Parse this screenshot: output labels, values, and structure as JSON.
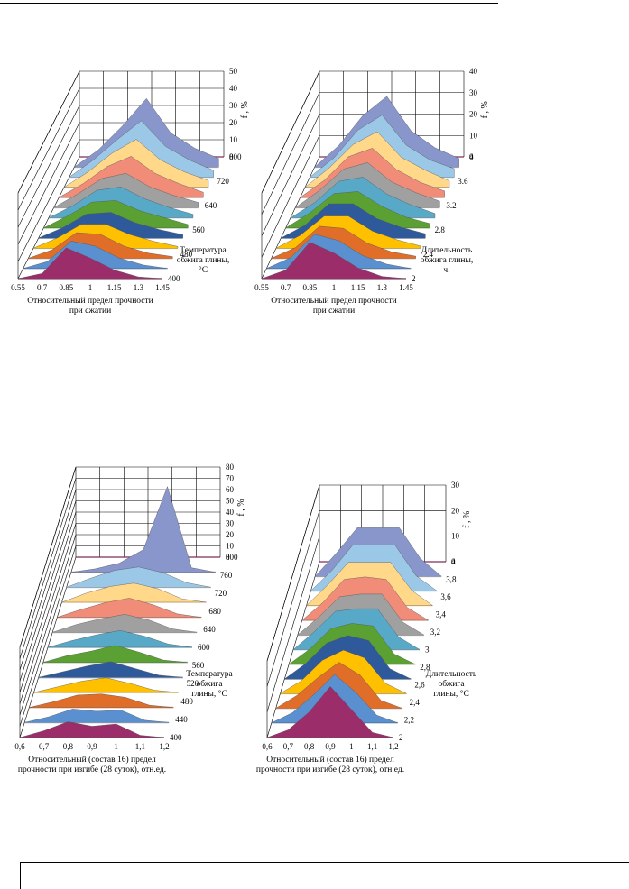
{
  "colors": [
    "#9b2d6b",
    "#5a8fd0",
    "#e06d28",
    "#ffc000",
    "#2e5a9c",
    "#5aa032",
    "#58a8c8",
    "#a0a0a0",
    "#f08c78",
    "#ffd88a",
    "#9cc8e8",
    "#8896cc"
  ],
  "chart_data": [
    {
      "type": "area",
      "title": "",
      "xlabel": "Относительный предел прочности\nпри сжатии",
      "zlabel": "Температура\nобжига глины,\n°C",
      "ylabel": "f , %",
      "x_ticks": [
        "0.55",
        "0.7",
        "0.85",
        "1",
        "1.15",
        "1.3",
        "1.45"
      ],
      "z_ticks": [
        "400",
        "480",
        "560",
        "640",
        "720",
        "800"
      ],
      "y_ticks": [
        "0",
        "10",
        "20",
        "30",
        "40",
        "50"
      ],
      "ylim": [
        0,
        50
      ],
      "series": [
        {
          "values": [
            0,
            3,
            18,
            12,
            5,
            1,
            0
          ]
        },
        {
          "values": [
            0,
            4,
            16,
            13,
            6,
            2,
            0
          ]
        },
        {
          "values": [
            0,
            5,
            15,
            14,
            7,
            3,
            1
          ]
        },
        {
          "values": [
            0,
            6,
            14,
            14,
            8,
            4,
            1
          ]
        },
        {
          "values": [
            0,
            6,
            14,
            15,
            9,
            5,
            2
          ]
        },
        {
          "values": [
            0,
            7,
            15,
            16,
            10,
            6,
            2
          ]
        },
        {
          "values": [
            0,
            7,
            16,
            18,
            11,
            6,
            2
          ]
        },
        {
          "values": [
            0,
            8,
            17,
            20,
            12,
            7,
            3
          ]
        },
        {
          "values": [
            0,
            8,
            18,
            24,
            14,
            8,
            3
          ]
        },
        {
          "values": [
            0,
            9,
            20,
            28,
            16,
            9,
            4
          ]
        },
        {
          "values": [
            0,
            10,
            22,
            33,
            18,
            10,
            4
          ]
        },
        {
          "values": [
            0,
            10,
            24,
            40,
            20,
            11,
            5
          ]
        }
      ]
    },
    {
      "type": "area",
      "title": "",
      "xlabel": "Относительный предел прочности\nпри сжатии",
      "zlabel": "Длительность\nобжига глины,\nч.",
      "ylabel": "f , %",
      "x_ticks": [
        "0.55",
        "0.7",
        "0.85",
        "1",
        "1.15",
        "1.3",
        "1.45"
      ],
      "z_ticks": [
        "2",
        "2.4",
        "2.8",
        "3.2",
        "3.6",
        "4"
      ],
      "y_ticks": [
        "0",
        "10",
        "20",
        "30",
        "40"
      ],
      "ylim": [
        0,
        40
      ],
      "series": [
        {
          "values": [
            0,
            4,
            17,
            12,
            5,
            1,
            0
          ]
        },
        {
          "values": [
            0,
            5,
            16,
            13,
            6,
            2,
            0
          ]
        },
        {
          "values": [
            0,
            5,
            15,
            14,
            7,
            3,
            1
          ]
        },
        {
          "values": [
            0,
            6,
            15,
            15,
            8,
            4,
            1
          ]
        },
        {
          "values": [
            0,
            6,
            16,
            16,
            9,
            5,
            2
          ]
        },
        {
          "values": [
            0,
            7,
            16,
            17,
            10,
            5,
            2
          ]
        },
        {
          "values": [
            0,
            7,
            17,
            19,
            11,
            6,
            2
          ]
        },
        {
          "values": [
            0,
            8,
            18,
            21,
            12,
            7,
            3
          ]
        },
        {
          "values": [
            0,
            8,
            19,
            23,
            13,
            7,
            3
          ]
        },
        {
          "values": [
            0,
            9,
            20,
            26,
            14,
            8,
            3
          ]
        },
        {
          "values": [
            0,
            9,
            22,
            29,
            15,
            8,
            4
          ]
        },
        {
          "values": [
            0,
            10,
            24,
            33,
            17,
            9,
            4
          ]
        }
      ]
    },
    {
      "type": "area",
      "title": "",
      "xlabel": "Относительный (состав 16) предел\nпрочности при изгибе (28 суток), отн.ед.",
      "zlabel": "Температура\nобжига\nглины, °C",
      "ylabel": "f , %",
      "x_ticks": [
        "0,6",
        "0,7",
        "0,8",
        "0,9",
        "1",
        "1,1",
        "1,2"
      ],
      "z_ticks": [
        "400",
        "440",
        "480",
        "520",
        "560",
        "600",
        "640",
        "680",
        "720",
        "760",
        "800"
      ],
      "y_ticks": [
        "0",
        "10",
        "20",
        "30",
        "40",
        "50",
        "60",
        "70",
        "80"
      ],
      "ylim": [
        0,
        80
      ],
      "series": [
        {
          "values": [
            0,
            6,
            14,
            10,
            12,
            2,
            0
          ]
        },
        {
          "values": [
            0,
            5,
            12,
            10,
            11,
            2,
            0
          ]
        },
        {
          "values": [
            0,
            5,
            11,
            12,
            9,
            2,
            0
          ]
        },
        {
          "values": [
            0,
            5,
            10,
            13,
            8,
            2,
            0
          ]
        },
        {
          "values": [
            0,
            5,
            10,
            14,
            8,
            2,
            0
          ]
        },
        {
          "values": [
            0,
            6,
            10,
            15,
            9,
            2,
            0
          ]
        },
        {
          "values": [
            0,
            6,
            11,
            15,
            10,
            3,
            0
          ]
        },
        {
          "values": [
            0,
            7,
            12,
            16,
            11,
            3,
            0
          ]
        },
        {
          "values": [
            0,
            7,
            13,
            17,
            11,
            3,
            0
          ]
        },
        {
          "values": [
            0,
            8,
            14,
            17,
            12,
            3,
            0
          ]
        },
        {
          "values": [
            0,
            8,
            15,
            18,
            13,
            4,
            0
          ]
        },
        {
          "values": [
            0,
            3,
            8,
            20,
            76,
            4,
            0
          ]
        }
      ]
    },
    {
      "type": "area",
      "title": "",
      "xlabel": "Относительный (состав 16) предел\nпрочности при изгибе (28 суток), отн.ед.",
      "zlabel": "Длительность\nобжига\nглины, °C",
      "ylabel": "f , %",
      "x_ticks": [
        "0,6",
        "0,7",
        "0,8",
        "0,9",
        "1",
        "1,1",
        "1,2"
      ],
      "z_ticks": [
        "2",
        "2,2",
        "2,4",
        "2,6",
        "2,8",
        "3",
        "3,2",
        "3,4",
        "3,6",
        "3,8",
        "4"
      ],
      "y_ticks": [
        "0",
        "10",
        "20",
        "30"
      ],
      "ylim": [
        0,
        30
      ],
      "series": [
        {
          "values": [
            0,
            3,
            10,
            20,
            11,
            2,
            0
          ]
        },
        {
          "values": [
            0,
            4,
            11,
            19,
            12,
            3,
            0
          ]
        },
        {
          "values": [
            0,
            5,
            12,
            18,
            13,
            3,
            0
          ]
        },
        {
          "values": [
            0,
            5,
            13,
            17,
            14,
            4,
            0
          ]
        },
        {
          "values": [
            0,
            6,
            14,
            17,
            15,
            4,
            0
          ]
        },
        {
          "values": [
            0,
            6,
            14,
            16,
            15,
            4,
            0
          ]
        },
        {
          "values": [
            0,
            7,
            15,
            16,
            16,
            5,
            0
          ]
        },
        {
          "values": [
            0,
            7,
            15,
            16,
            16,
            5,
            0
          ]
        },
        {
          "values": [
            0,
            7,
            16,
            17,
            16,
            5,
            0
          ]
        },
        {
          "values": [
            0,
            8,
            17,
            17,
            17,
            6,
            0
          ]
        },
        {
          "values": [
            0,
            8,
            18,
            18,
            18,
            6,
            0
          ]
        },
        {
          "values": [
            0,
            9,
            19,
            19,
            19,
            7,
            0
          ]
        }
      ]
    }
  ]
}
